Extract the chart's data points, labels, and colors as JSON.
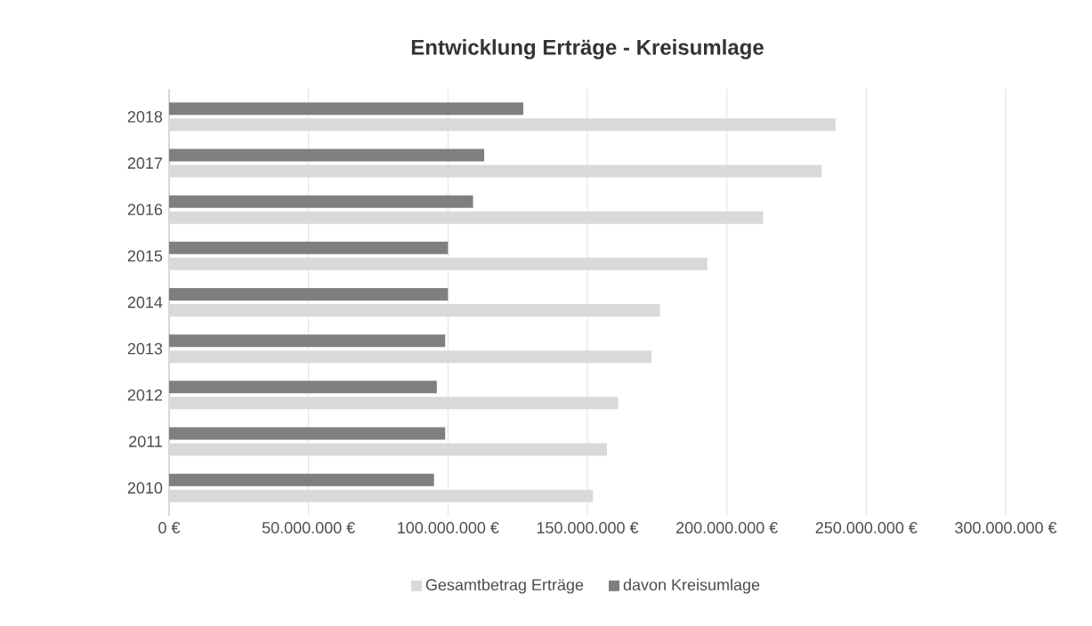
{
  "chart_data": {
    "type": "bar",
    "orientation": "horizontal",
    "title": "Entwicklung  Erträge - Kreisumlage",
    "categories": [
      "2018",
      "2017",
      "2016",
      "2015",
      "2014",
      "2013",
      "2012",
      "2011",
      "2010"
    ],
    "series": [
      {
        "name": "Gesamtbetrag Erträge",
        "color": "#d9d9d9",
        "values": [
          239000000,
          234000000,
          213000000,
          193000000,
          176000000,
          173000000,
          161000000,
          157000000,
          152000000
        ]
      },
      {
        "name": "davon Kreisumlage",
        "color": "#7f7f7f",
        "values": [
          127000000,
          113000000,
          109000000,
          100000000,
          100000000,
          99000000,
          96000000,
          99000000,
          95000000
        ]
      }
    ],
    "xlim": [
      0,
      300000000
    ],
    "xticks": [
      {
        "value": 0,
        "label": "0 €"
      },
      {
        "value": 50000000,
        "label": "50.000.000 €"
      },
      {
        "value": 100000000,
        "label": "100.000.000 €"
      },
      {
        "value": 150000000,
        "label": "150.000.000 €"
      },
      {
        "value": 200000000,
        "label": "200.000.000 €"
      },
      {
        "value": 250000000,
        "label": "250.000.000 €"
      },
      {
        "value": 300000000,
        "label": "300.000.000 €"
      }
    ],
    "grid": "x",
    "legend": "bottom"
  }
}
